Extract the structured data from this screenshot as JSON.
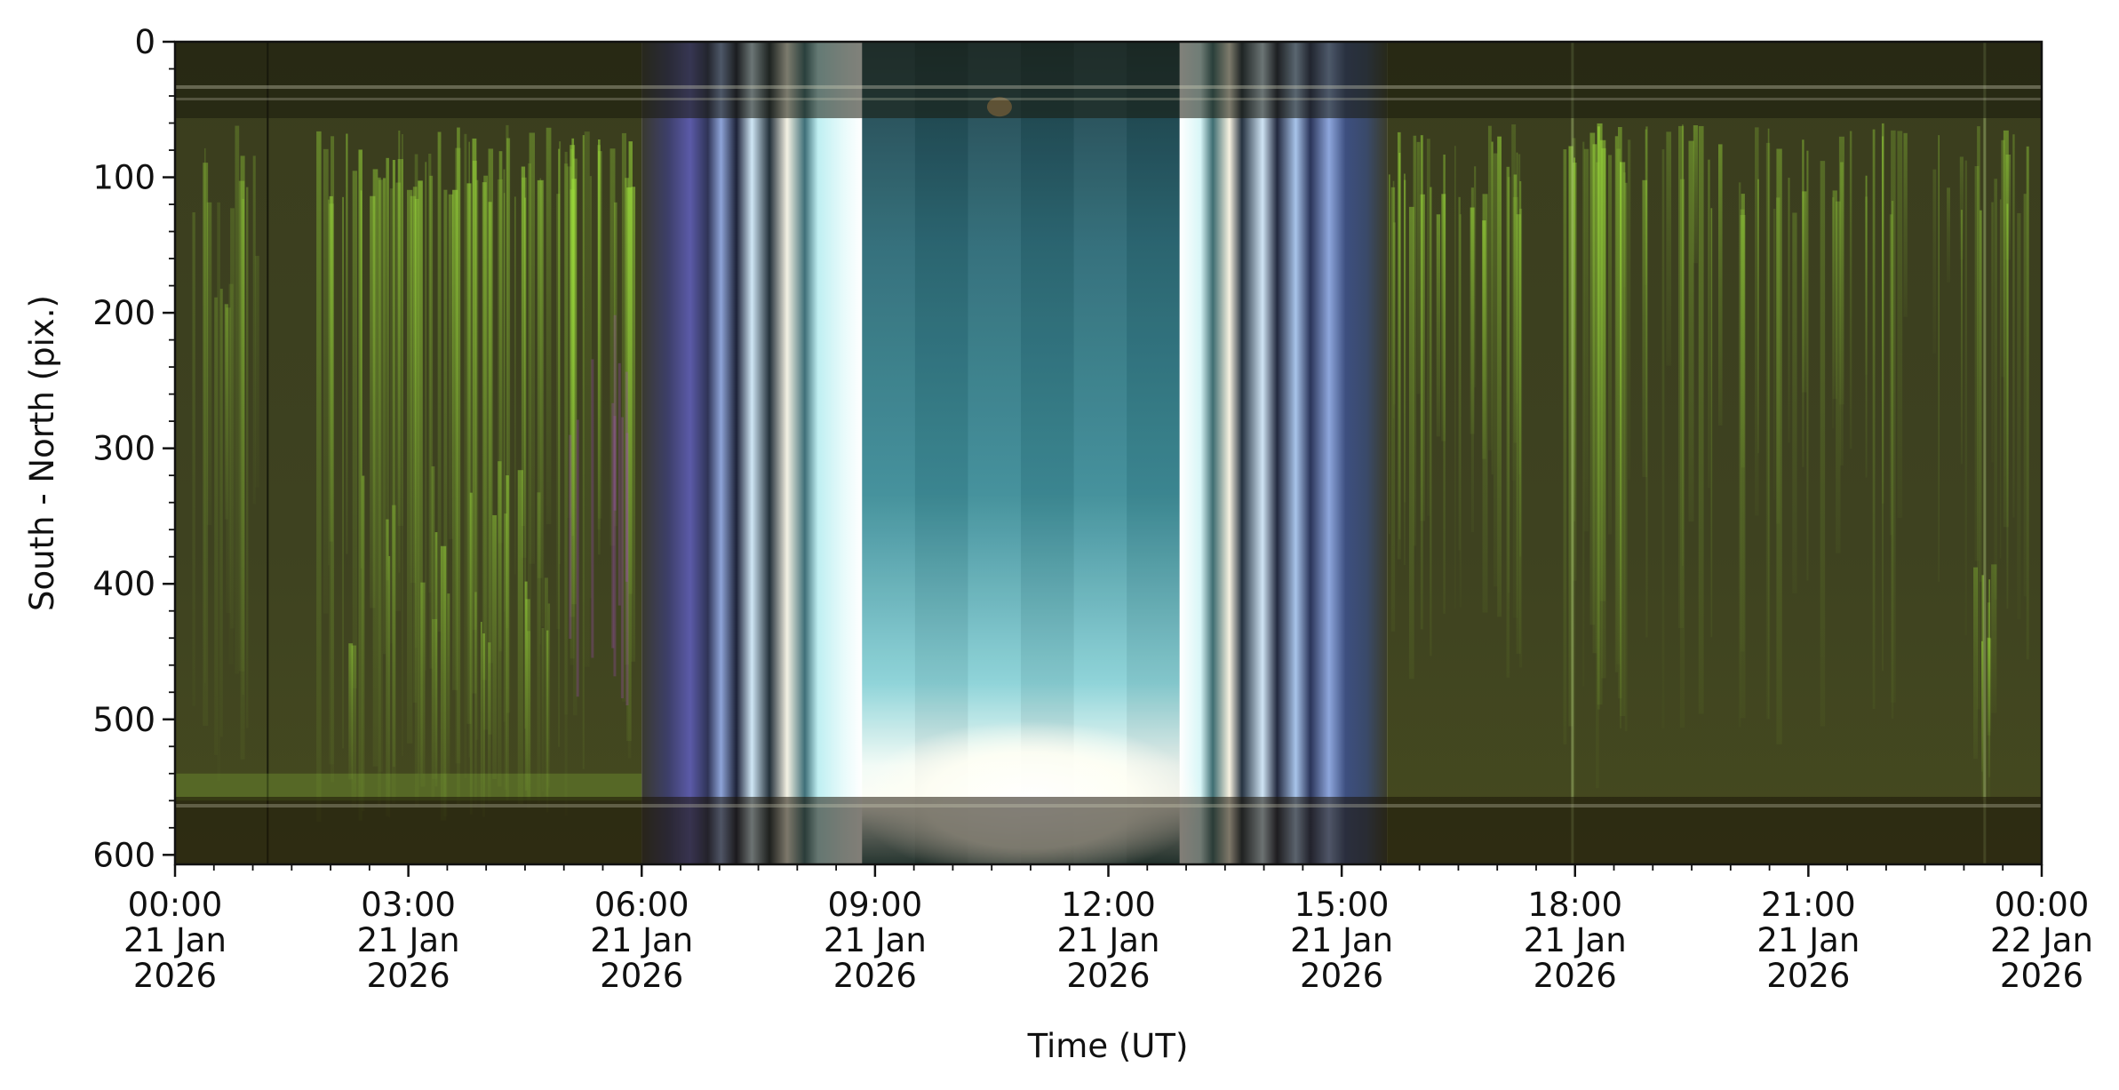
{
  "chart_data": {
    "type": "heatmap",
    "subtype": "auroral keogram",
    "title": "",
    "xlabel": "Time (UT)",
    "ylabel": "South - North (pix.)",
    "x_range": [
      "2026-01-21T00:00",
      "2026-01-22T00:00"
    ],
    "y_range": [
      0,
      607
    ],
    "y_inverted": true,
    "grid": false,
    "x_ticks": [
      {
        "time": "2026-01-21T00:00",
        "line1": "00:00",
        "line2": "21 Jan",
        "line3": "2026"
      },
      {
        "time": "2026-01-21T03:00",
        "line1": "03:00",
        "line2": "21 Jan",
        "line3": "2026"
      },
      {
        "time": "2026-01-21T06:00",
        "line1": "06:00",
        "line2": "21 Jan",
        "line3": "2026"
      },
      {
        "time": "2026-01-21T09:00",
        "line1": "09:00",
        "line2": "21 Jan",
        "line3": "2026"
      },
      {
        "time": "2026-01-21T12:00",
        "line1": "12:00",
        "line2": "21 Jan",
        "line3": "2026"
      },
      {
        "time": "2026-01-21T15:00",
        "line1": "15:00",
        "line2": "21 Jan",
        "line3": "2026"
      },
      {
        "time": "2026-01-21T18:00",
        "line1": "18:00",
        "line2": "21 Jan",
        "line3": "2026"
      },
      {
        "time": "2026-01-21T21:00",
        "line1": "21:00",
        "line2": "21 Jan",
        "line3": "2026"
      },
      {
        "time": "2026-01-22T00:00",
        "line1": "00:00",
        "line2": "22 Jan",
        "line3": "2026"
      }
    ],
    "y_ticks": [
      0,
      100,
      200,
      300,
      400,
      500,
      600
    ],
    "bands": [
      {
        "start": "2026-01-21T00:00",
        "end": "2026-01-21T06:00",
        "description": "night, green aurora",
        "color": "#3c3f1c"
      },
      {
        "start": "2026-01-21T06:00",
        "end": "2026-01-21T08:50",
        "description": "twilight, blue-white",
        "color": "#8aa2cc"
      },
      {
        "start": "2026-01-21T08:50",
        "end": "2026-01-21T12:55",
        "description": "daylight, teal",
        "color": "#3d8a96"
      },
      {
        "start": "2026-01-21T12:55",
        "end": "2026-01-21T15:35",
        "description": "twilight, white-blue",
        "color": "#8aa8d6"
      },
      {
        "start": "2026-01-21T15:35",
        "end": "2026-01-22T00:00",
        "description": "night, green aurora",
        "color": "#3c3f1c"
      }
    ],
    "aurora_color": "#9bdc3a"
  }
}
